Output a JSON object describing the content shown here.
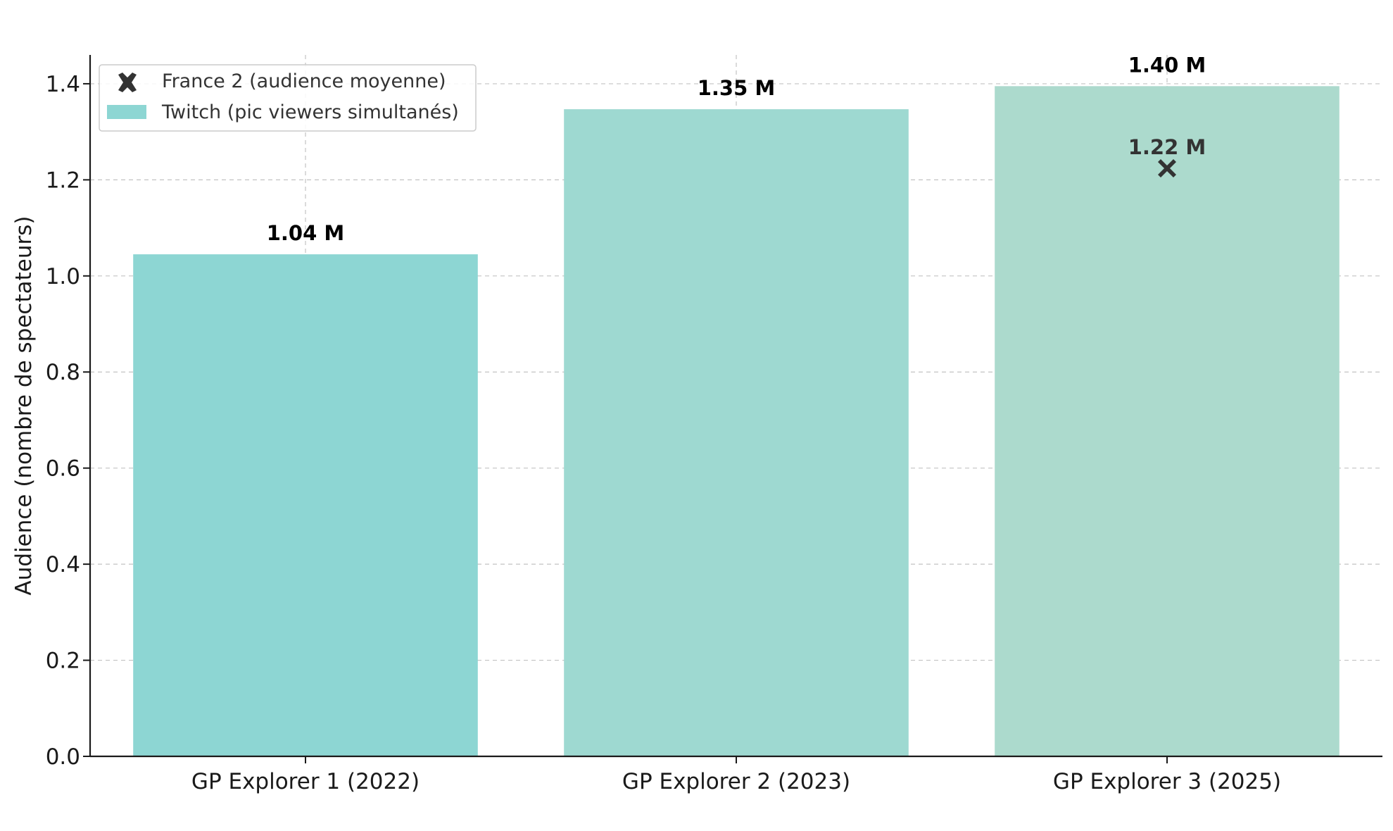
{
  "chart_data": {
    "type": "bar",
    "title": "",
    "xlabel": "",
    "ylabel": "Audience (nombre de spectateurs)",
    "ylim": [
      0,
      1.46
    ],
    "yticks": [
      "0.0",
      "0.2",
      "0.4",
      "0.6",
      "0.8",
      "1.0",
      "1.2",
      "1.4"
    ],
    "categories": [
      "GP Explorer 1 (2022)",
      "GP Explorer 2 (2023)",
      "GP Explorer 3 (2025)"
    ],
    "grid": true,
    "legend_position": "top-left",
    "series": [
      {
        "name": "Twitch (pic viewers simultanés)",
        "kind": "bar",
        "values": [
          1.045,
          1.347,
          1.395
        ],
        "labels": [
          "1.04 M",
          "1.35 M",
          "1.40 M"
        ],
        "colors": [
          "#8dd6d3",
          "#9ed9d1",
          "#acdacd"
        ]
      },
      {
        "name": "France 2 (audience moyenne)",
        "kind": "marker",
        "marker": "x",
        "color": "#333333",
        "points": [
          {
            "category": "GP Explorer 3 (2025)",
            "value": 1.224,
            "label": "1.22 M"
          }
        ]
      }
    ]
  }
}
